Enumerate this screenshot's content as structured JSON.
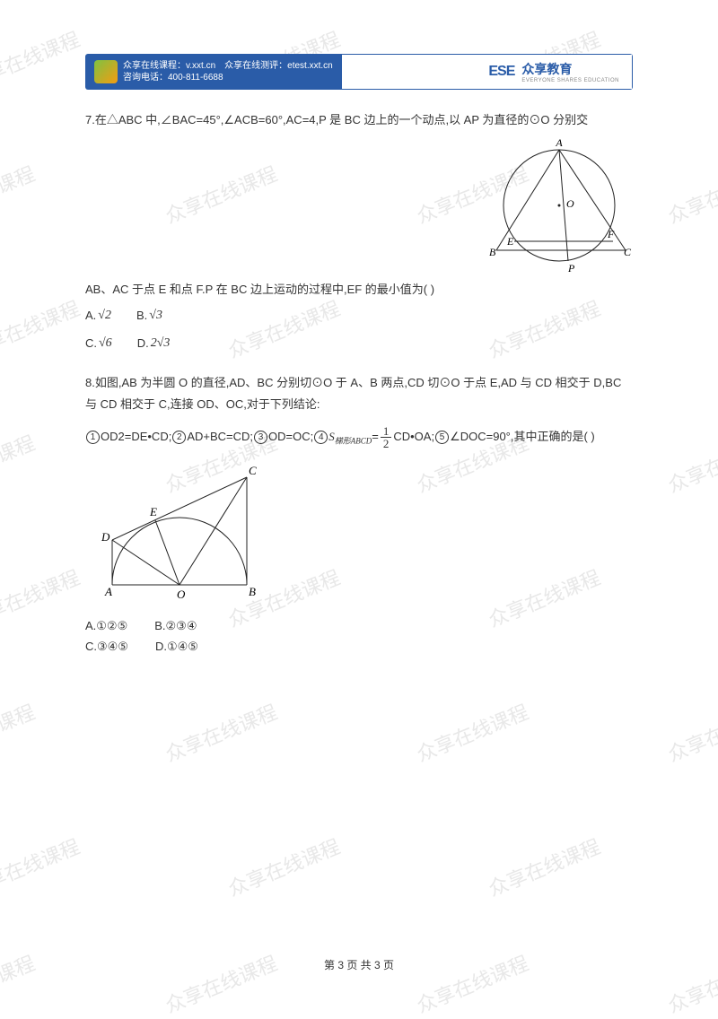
{
  "banner": {
    "line1": "众享在线课程：v.xxt.cn　众享在线测评：etest.xxt.cn",
    "line2": "咨询电话：400-811-6688",
    "brand_logo": "ESE",
    "brand_name": "众享教育",
    "brand_sub": "EVERYONE SHARES EDUCATION",
    "colors": {
      "primary": "#2a5ca8",
      "white": "#ffffff"
    }
  },
  "watermark": {
    "text": "众享在线课程",
    "color": "#e8e8e8",
    "positions": [
      [
        -40,
        50
      ],
      [
        250,
        50
      ],
      [
        540,
        50
      ],
      [
        -90,
        200
      ],
      [
        180,
        200
      ],
      [
        460,
        200
      ],
      [
        740,
        200
      ],
      [
        -40,
        350
      ],
      [
        250,
        350
      ],
      [
        540,
        350
      ],
      [
        -90,
        500
      ],
      [
        180,
        500
      ],
      [
        460,
        500
      ],
      [
        740,
        500
      ],
      [
        -40,
        650
      ],
      [
        250,
        650
      ],
      [
        540,
        650
      ],
      [
        -90,
        800
      ],
      [
        180,
        800
      ],
      [
        460,
        800
      ],
      [
        740,
        800
      ],
      [
        -40,
        950
      ],
      [
        250,
        950
      ],
      [
        540,
        950
      ],
      [
        -90,
        1080
      ],
      [
        180,
        1080
      ],
      [
        460,
        1080
      ],
      [
        740,
        1080
      ]
    ]
  },
  "q7": {
    "text_part1": "7.在△ABC 中,∠BAC=45°,∠ACB=60°,AC=4,P 是 BC 边上的一个动点,以 AP 为直径的⊙O 分别交",
    "text_part2": "AB、AC 于点 E 和点 F.P 在 BC 边上运动的过程中,EF 的最小值为( )",
    "options": {
      "A": {
        "label": "A.",
        "val": "√2"
      },
      "B": {
        "label": "B.",
        "val": "√3"
      },
      "C": {
        "label": "C.",
        "val": "√6"
      },
      "D": {
        "label": "D.",
        "val": "2√3"
      }
    },
    "figure_labels": {
      "A": "A",
      "B": "B",
      "C": "C",
      "E": "E",
      "F": "F",
      "O": "O",
      "P": "P"
    }
  },
  "q8": {
    "text1": "8.如图,AB 为半圆 O 的直径,AD、BC 分别切⊙O 于 A、B 两点,CD 切⊙O 于点 E,AD 与 CD 相交于 D,BC 与 CD 相交于 C,连接 OD、OC,对于下列结论:",
    "stmt1": "OD2=DE•CD;",
    "stmt2": "AD+BC=CD;",
    "stmt3": "OD=OC;",
    "stmt4_pre": " ",
    "stmt4_sym": "S",
    "stmt4_sub": "梯形ABCD",
    "stmt4_eq": " = ",
    "stmt4_post": " CD•OA;",
    "stmt5": "∠DOC=90°,其中正确的是(  )",
    "options": {
      "A": "A.①②⑤",
      "B": "B.②③④",
      "C": "C.③④⑤",
      "D": "D.①④⑤"
    },
    "figure_labels": {
      "A": "A",
      "B": "B",
      "C": "C",
      "D": "D",
      "E": "E",
      "O": "O"
    }
  },
  "footer": "第 3 页 共 3 页"
}
